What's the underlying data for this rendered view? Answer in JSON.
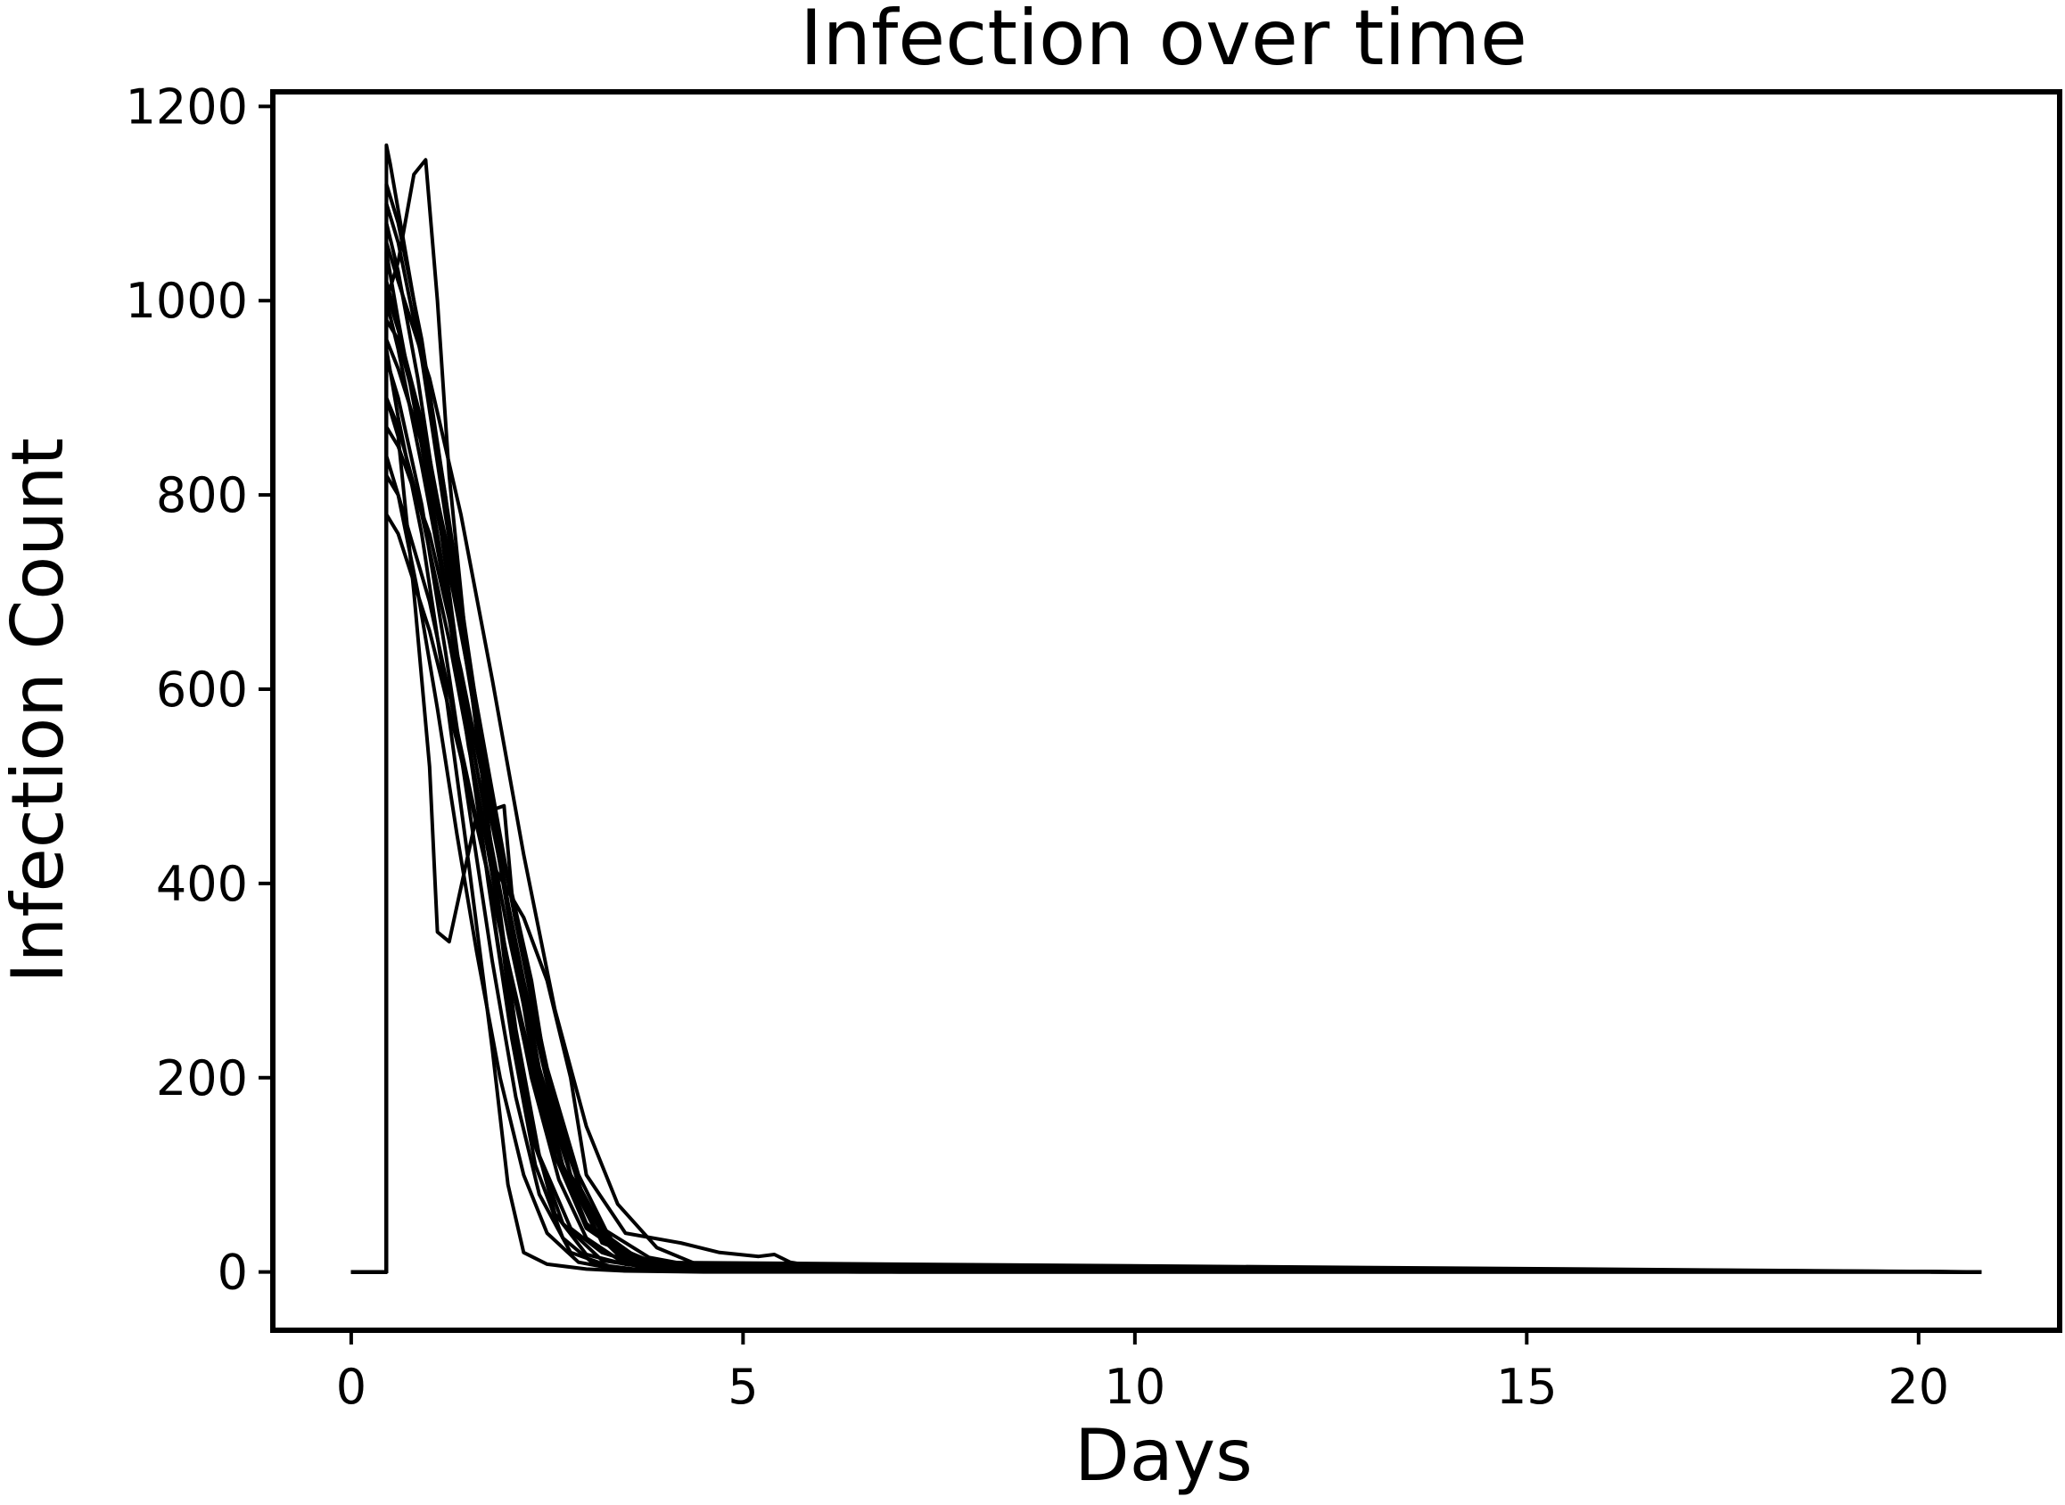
{
  "chart_data": {
    "type": "line",
    "title": "Infection over time",
    "xlabel": "Days",
    "ylabel": "Infection Count",
    "xlim": [
      -1.0,
      21.8
    ],
    "ylim": [
      -60,
      1215
    ],
    "x_ticks": [
      0,
      5,
      10,
      15,
      20
    ],
    "y_ticks": [
      0,
      200,
      400,
      600,
      800,
      1000,
      1200
    ],
    "grid": false,
    "line_color": "#000000",
    "series": [
      {
        "x": [
          0,
          0.45,
          0.45,
          0.5,
          0.8,
          1.2,
          1.6,
          2.0,
          2.3,
          2.6,
          3.0,
          3.5,
          4.0,
          5.0,
          6.0,
          7.0,
          10.0,
          15.0,
          20.8
        ],
        "y": [
          0,
          0,
          1160,
          1140,
          1000,
          800,
          560,
          290,
          150,
          60,
          18,
          8,
          4,
          2,
          1,
          0,
          0,
          0,
          0
        ]
      },
      {
        "x": [
          0,
          0.45,
          0.45,
          0.6,
          0.8,
          0.95,
          1.1,
          1.25,
          1.5,
          1.8,
          2.1,
          2.4,
          2.8,
          3.2,
          3.6,
          4.2,
          5.0,
          6.5,
          20.8
        ],
        "y": [
          0,
          0,
          1000,
          1040,
          1130,
          1145,
          1000,
          820,
          620,
          430,
          250,
          120,
          45,
          20,
          10,
          4,
          1,
          0,
          0
        ]
      },
      {
        "x": [
          0,
          0.45,
          0.45,
          0.6,
          0.8,
          1.0,
          1.1,
          1.25,
          1.6,
          1.95,
          2.05,
          2.3,
          2.5,
          2.8,
          3.2,
          4.0,
          20.8
        ],
        "y": [
          0,
          0,
          900,
          860,
          700,
          520,
          350,
          340,
          470,
          480,
          390,
          300,
          200,
          100,
          30,
          5,
          0
        ]
      },
      {
        "x": [
          0,
          0.45,
          0.45,
          0.6,
          0.9,
          1.2,
          1.5,
          1.8,
          2.2,
          2.5,
          2.8,
          3.0,
          3.5,
          4.2,
          4.7,
          5.2,
          5.4,
          5.6,
          6.2,
          20.8
        ],
        "y": [
          0,
          0,
          1050,
          980,
          850,
          700,
          540,
          420,
          365,
          300,
          200,
          100,
          40,
          30,
          20,
          16,
          18,
          10,
          2,
          0
        ]
      },
      {
        "x": [
          0,
          0.45,
          0.45,
          0.6,
          0.9,
          1.2,
          1.5,
          1.8,
          2.0,
          2.2,
          2.5,
          3.0,
          3.5,
          4.5,
          20.8
        ],
        "y": [
          0,
          0,
          950,
          880,
          760,
          600,
          420,
          230,
          90,
          20,
          8,
          3,
          1,
          0,
          0
        ]
      },
      {
        "x": [
          0,
          0.45,
          0.45,
          0.6,
          0.9,
          1.2,
          1.6,
          2.0,
          2.4,
          2.8,
          3.2,
          3.6,
          4.2,
          20.8
        ],
        "y": [
          0,
          0,
          1100,
          1060,
          940,
          780,
          580,
          380,
          210,
          100,
          40,
          15,
          3,
          0
        ]
      },
      {
        "x": [
          0,
          0.45,
          0.45,
          0.6,
          1.0,
          1.4,
          1.8,
          2.2,
          2.6,
          3.0,
          3.5,
          4.5,
          20.8
        ],
        "y": [
          0,
          0,
          820,
          800,
          690,
          540,
          390,
          240,
          120,
          50,
          15,
          2,
          0
        ]
      },
      {
        "x": [
          0,
          0.45,
          0.45,
          0.55,
          0.8,
          1.1,
          1.4,
          1.7,
          2.0,
          2.3,
          2.7,
          3.2,
          4.0,
          20.8
        ],
        "y": [
          0,
          0,
          1020,
          990,
          900,
          760,
          600,
          430,
          270,
          140,
          50,
          12,
          2,
          0
        ]
      },
      {
        "x": [
          0,
          0.45,
          0.45,
          0.6,
          0.9,
          1.3,
          1.7,
          2.1,
          2.5,
          2.9,
          3.3,
          3.8,
          4.6,
          20.8
        ],
        "y": [
          0,
          0,
          980,
          960,
          870,
          720,
          540,
          360,
          200,
          90,
          30,
          10,
          1,
          0
        ]
      },
      {
        "x": [
          0,
          0.45,
          0.45,
          0.6,
          0.85,
          1.15,
          1.45,
          1.75,
          2.05,
          2.35,
          2.7,
          3.1,
          3.8,
          20.8
        ],
        "y": [
          0,
          0,
          1080,
          1030,
          920,
          760,
          580,
          400,
          240,
          110,
          35,
          8,
          1,
          0
        ]
      },
      {
        "x": [
          0,
          0.45,
          0.45,
          0.6,
          1.0,
          1.4,
          1.8,
          2.2,
          2.6,
          3.0,
          3.4,
          4.0,
          20.8
        ],
        "y": [
          0,
          0,
          870,
          850,
          760,
          620,
          460,
          300,
          160,
          70,
          25,
          5,
          0
        ]
      },
      {
        "x": [
          0,
          0.45,
          0.45,
          0.6,
          0.9,
          1.2,
          1.5,
          1.8,
          2.1,
          2.4,
          2.8,
          3.4,
          20.8
        ],
        "y": [
          0,
          0,
          940,
          900,
          790,
          640,
          480,
          320,
          180,
          80,
          20,
          3,
          0
        ]
      },
      {
        "x": [
          0,
          0.45,
          0.45,
          0.6,
          0.95,
          1.3,
          1.65,
          2.0,
          2.35,
          2.7,
          3.1,
          3.6,
          4.4,
          20.8
        ],
        "y": [
          0,
          0,
          1010,
          970,
          860,
          710,
          540,
          370,
          220,
          110,
          45,
          15,
          2,
          0
        ]
      },
      {
        "x": [
          0,
          0.45,
          0.45,
          0.6,
          0.9,
          1.25,
          1.6,
          1.95,
          2.3,
          2.65,
          3.0,
          3.5,
          20.8
        ],
        "y": [
          0,
          0,
          900,
          870,
          780,
          650,
          500,
          340,
          200,
          95,
          35,
          8,
          0
        ]
      },
      {
        "x": [
          0,
          0.45,
          0.45,
          0.6,
          1.0,
          1.4,
          1.8,
          2.2,
          2.6,
          3.0,
          3.4,
          3.9,
          4.5,
          20.8
        ],
        "y": [
          0,
          0,
          1060,
          1020,
          920,
          780,
          610,
          430,
          270,
          150,
          70,
          25,
          5,
          0
        ]
      },
      {
        "x": [
          0,
          0.45,
          0.45,
          0.6,
          0.85,
          1.1,
          1.35,
          1.6,
          1.9,
          2.2,
          2.5,
          2.9,
          3.5,
          20.8
        ],
        "y": [
          0,
          0,
          840,
          800,
          700,
          580,
          450,
          330,
          200,
          100,
          40,
          10,
          1,
          0
        ]
      },
      {
        "x": [
          0,
          0.45,
          0.45,
          0.6,
          0.95,
          1.3,
          1.7,
          2.1,
          2.5,
          2.9,
          3.3,
          3.8,
          20.8
        ],
        "y": [
          0,
          0,
          960,
          930,
          840,
          700,
          530,
          360,
          210,
          100,
          35,
          6,
          0
        ]
      },
      {
        "x": [
          0,
          0.45,
          0.45,
          0.6,
          0.9,
          1.2,
          1.55,
          1.9,
          2.25,
          2.6,
          3.0,
          3.6,
          4.4,
          20.8
        ],
        "y": [
          0,
          0,
          1120,
          1080,
          960,
          800,
          610,
          420,
          250,
          120,
          45,
          12,
          2,
          0
        ]
      },
      {
        "x": [
          0,
          0.45,
          0.45,
          0.6,
          1.0,
          1.4,
          1.8,
          2.2,
          2.6,
          3.0,
          3.5,
          20.8
        ],
        "y": [
          0,
          0,
          780,
          760,
          660,
          530,
          390,
          250,
          130,
          50,
          10,
          0
        ]
      },
      {
        "x": [
          0,
          0.45,
          0.45,
          0.6,
          0.9,
          1.25,
          1.6,
          2.0,
          2.4,
          2.8,
          3.2,
          3.8,
          4.6,
          20.8
        ],
        "y": [
          0,
          0,
          1000,
          950,
          830,
          680,
          520,
          350,
          200,
          100,
          45,
          15,
          3,
          0
        ]
      }
    ]
  }
}
